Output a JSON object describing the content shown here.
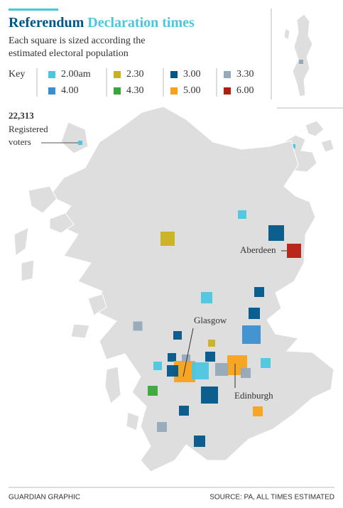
{
  "header": {
    "title_main": "Referendum",
    "title_accent": "Declaration times",
    "subtitle": [
      "Each square is sized according the",
      "estimated electoral population"
    ]
  },
  "key": {
    "label": "Key",
    "items": [
      {
        "label": "2.00am",
        "color": "#4bc6df"
      },
      {
        "label": "2.30",
        "color": "#c9b11c"
      },
      {
        "label": "3.00",
        "color": "#005689"
      },
      {
        "label": "3.30",
        "color": "#95a9b8"
      },
      {
        "label": "4.00",
        "color": "#3a8fd0"
      },
      {
        "label": "4.30",
        "color": "#3aa53a"
      },
      {
        "label": "5.00",
        "color": "#f7a11a"
      },
      {
        "label": "6.00",
        "color": "#b51c10"
      }
    ]
  },
  "annotation": {
    "value": "22,313",
    "lines": [
      "Registered",
      "voters"
    ]
  },
  "map_labels": {
    "aberdeen": "Aberdeen",
    "glasgow": "Glasgow",
    "edinburgh": "Edinburgh"
  },
  "footer": {
    "credit": "GUARDIAN GRAPHIC",
    "source": "SOURCE: PA, ALL TIMES ESTIMATED"
  }
}
